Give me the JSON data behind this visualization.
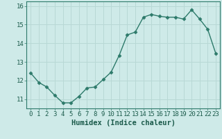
{
  "xlabel": "Humidex (Indice chaleur)",
  "x": [
    0,
    1,
    2,
    3,
    4,
    5,
    6,
    7,
    8,
    9,
    10,
    11,
    12,
    13,
    14,
    15,
    16,
    17,
    18,
    19,
    20,
    21,
    22,
    23
  ],
  "y": [
    12.4,
    11.9,
    11.65,
    11.2,
    10.8,
    10.8,
    11.15,
    11.6,
    11.65,
    12.05,
    12.45,
    13.35,
    14.45,
    14.6,
    15.4,
    15.55,
    15.45,
    15.4,
    15.4,
    15.3,
    15.8,
    15.3,
    14.75,
    13.45
  ],
  "line_color": "#2d7a6a",
  "marker": "D",
  "marker_size": 2.5,
  "bg_color": "#ceeae8",
  "grid_color": "#b8d8d5",
  "ylim": [
    10.5,
    16.25
  ],
  "yticks": [
    11,
    12,
    13,
    14,
    15,
    16
  ],
  "xticks": [
    0,
    1,
    2,
    3,
    4,
    5,
    6,
    7,
    8,
    9,
    10,
    11,
    12,
    13,
    14,
    15,
    16,
    17,
    18,
    19,
    20,
    21,
    22,
    23
  ],
  "xlabel_fontsize": 7.5,
  "tick_fontsize": 6.5,
  "line_width": 1.0
}
